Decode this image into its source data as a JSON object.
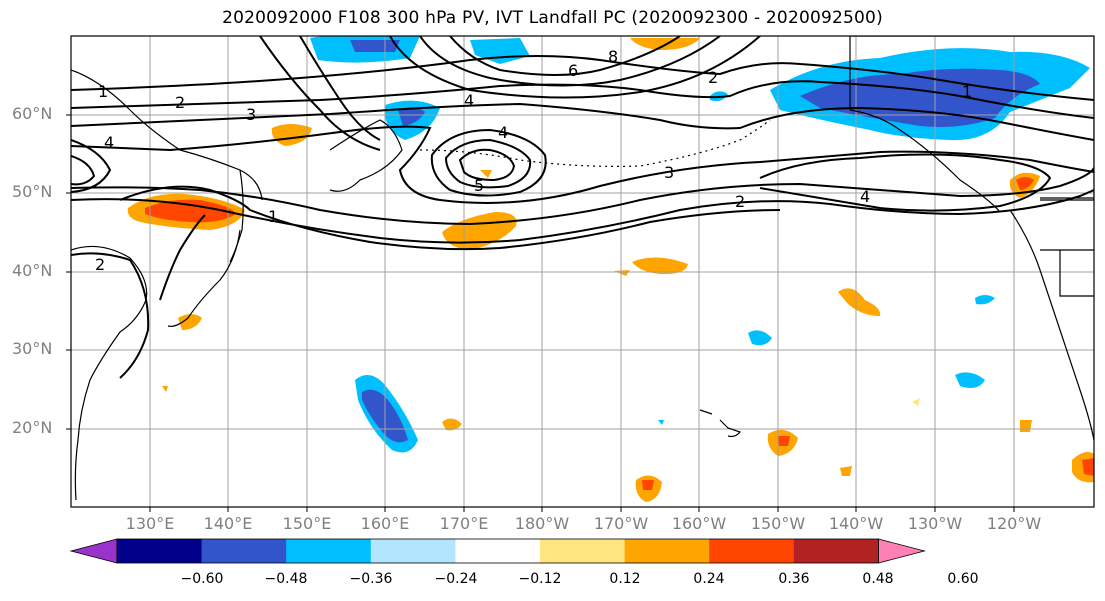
{
  "title": "2020092000 F108 300 hPa PV, IVT Landfall PC (2020092300 - 2020092500)",
  "lat_labels": [
    "60°N",
    "50°N",
    "40°N",
    "30°N",
    "20°N"
  ],
  "lon_labels": [
    "130°E",
    "140°E",
    "150°E",
    "160°E",
    "170°E",
    "180°W",
    "170°W",
    "160°W",
    "150°W",
    "140°W",
    "130°W",
    "120°W"
  ],
  "contour_labels": {
    "pv_1_west": "1",
    "pv_2_west": "2",
    "pv_3_west": "3",
    "pv_4_center": "4",
    "pv_4_ring": "4",
    "pv_5_center": "5",
    "pv_8_north": "8",
    "pv_6_north": "6",
    "pv_2_east": "2",
    "pv_3_east": "3",
    "pv_2_southeast": "2",
    "pv_4_east": "4",
    "pv_1_alaska": "1",
    "pv_1_japan": "1",
    "pv_2_japan": "2",
    "pv_4_siberia": "4"
  },
  "colorbar": {
    "ticks": [
      "−0.60",
      "−0.48",
      "−0.36",
      "−0.24",
      "−0.12",
      "0.12",
      "0.24",
      "0.36",
      "0.48",
      "0.60"
    ],
    "colors": [
      "#9933cc",
      "#00008b",
      "#3355cc",
      "#00bfff",
      "#b3e5ff",
      "#ffffff",
      "#ffe680",
      "#ffa500",
      "#ff4500",
      "#b22222",
      "#ff80b3"
    ]
  }
}
